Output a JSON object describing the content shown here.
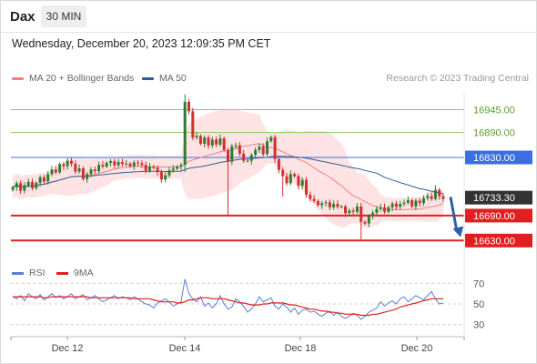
{
  "header": {
    "symbol": "Dax",
    "timeframe": "30 MIN",
    "timestamp": "Wednesday, December 20, 2023 12:09:35 PM CET"
  },
  "legend": {
    "ma20_label": "MA 20 + Bollinger Bands",
    "ma50_label": "MA 50",
    "ma20_color": "#f08080",
    "ma50_color": "#2f5f99",
    "research": "Research © 2023 Trading Central"
  },
  "rsi_legend": {
    "rsi_label": "RSI",
    "ma_label": "9MA",
    "rsi_color": "#5b7fd6",
    "ma_color": "#e02020"
  },
  "colors": {
    "up": "#2e7d32",
    "down": "#d32f2f",
    "band_fill": "#fde3e3",
    "support": "#e02020",
    "resistance": "#8fc866",
    "pivot": "#3b6fe0",
    "current": "#333333",
    "arrow": "#2b5fa8"
  },
  "chart_data": [
    {
      "type": "candlestick",
      "title": "",
      "ylim": [
        16600,
        16990
      ],
      "x_ticks": [
        "Dec 12",
        "Dec 14",
        "Dec 18",
        "Dec 20"
      ],
      "levels": [
        {
          "label": "16945.00",
          "value": 16945,
          "kind": "resistance"
        },
        {
          "label": "16890.00",
          "value": 16890,
          "kind": "resistance"
        },
        {
          "label": "16830.00",
          "value": 16830,
          "kind": "pivot"
        },
        {
          "label": "16733.30",
          "value": 16733.3,
          "kind": "current"
        },
        {
          "label": "16690.00",
          "value": 16690,
          "kind": "support"
        },
        {
          "label": "16630.00",
          "value": 16630,
          "kind": "support"
        }
      ],
      "close": [
        16758,
        16768,
        16750,
        16763,
        16771,
        16756,
        16769,
        16782,
        16772,
        16790,
        16801,
        16794,
        16814,
        16809,
        16822,
        16815,
        16796,
        16804,
        16778,
        16790,
        16801,
        16797,
        16812,
        16808,
        16817,
        16821,
        16811,
        16819,
        16814,
        16815,
        16809,
        16818,
        16816,
        16812,
        16798,
        16808,
        16805,
        16795,
        16777,
        16787,
        16799,
        16803,
        16808,
        16812,
        16964,
        16941,
        16878,
        16882,
        16863,
        16878,
        16859,
        16873,
        16861,
        16876,
        16848,
        16820,
        16857,
        16859,
        16839,
        16822,
        16822,
        16836,
        16848,
        16856,
        16838,
        16869,
        16879,
        16826,
        16800,
        16785,
        16768,
        16790,
        16785,
        16762,
        16776,
        16740,
        16730,
        16725,
        16715,
        16720,
        16722,
        16710,
        16718,
        16711,
        16712,
        16696,
        16702,
        16699,
        16712,
        16675,
        16671,
        16689,
        16697,
        16706,
        16710,
        16699,
        16710,
        16719,
        16711,
        16718,
        16721,
        16727,
        16712,
        16726,
        16720,
        16732,
        16737,
        16730,
        16752,
        16737,
        16730
      ],
      "series": [
        {
          "name": "MA 20 + Bollinger Bands",
          "color": "#f08080"
        },
        {
          "name": "MA 50",
          "color": "#2f5f99"
        }
      ],
      "arrow": {
        "from_value": 16735,
        "to_value": 16638
      }
    },
    {
      "type": "line",
      "title": "",
      "ylim": [
        20,
        80
      ],
      "y_ticks": [
        70,
        50,
        30
      ],
      "series": [
        {
          "name": "RSI",
          "color": "#5b7fd6",
          "values": [
            57,
            55,
            58,
            53,
            60,
            57,
            55,
            59,
            54,
            57,
            60,
            56,
            58,
            55,
            57,
            60,
            55,
            57,
            59,
            54,
            56,
            58,
            55,
            52,
            54,
            56,
            58,
            55,
            57,
            56,
            54,
            57,
            55,
            52,
            50,
            49,
            46,
            51,
            53,
            55,
            52,
            48,
            50,
            52,
            74,
            60,
            55,
            52,
            57,
            48,
            51,
            46,
            50,
            58,
            50,
            45,
            47,
            55,
            52,
            48,
            42,
            45,
            50,
            57,
            52,
            54,
            56,
            48,
            45,
            50,
            47,
            42,
            46,
            40,
            44,
            45,
            42,
            43,
            40,
            38,
            41,
            43,
            39,
            42,
            38,
            36,
            38,
            41,
            39,
            35,
            38,
            42,
            44,
            46,
            52,
            48,
            51,
            53,
            50,
            55,
            57,
            52,
            55,
            58,
            56,
            54,
            58,
            62,
            55,
            50,
            51
          ]
        },
        {
          "name": "9MA",
          "color": "#e02020",
          "values": [
            57,
            57,
            57,
            57,
            57,
            57,
            57,
            57,
            56,
            56,
            57,
            57,
            57,
            57,
            57,
            57,
            57,
            57,
            57,
            57,
            56,
            56,
            56,
            56,
            56,
            56,
            56,
            56,
            56,
            56,
            56,
            55,
            55,
            55,
            55,
            55,
            54,
            53,
            52,
            52,
            52,
            52,
            51,
            51,
            52,
            54,
            54,
            55,
            56,
            56,
            56,
            55,
            55,
            55,
            55,
            54,
            53,
            52,
            51,
            51,
            50,
            49,
            49,
            49,
            50,
            50,
            51,
            51,
            51,
            51,
            50,
            49,
            49,
            48,
            47,
            46,
            45,
            45,
            44,
            43,
            43,
            42,
            42,
            41,
            41,
            40,
            40,
            40,
            40,
            39,
            39,
            39,
            40,
            40,
            41,
            42,
            43,
            44,
            45,
            47,
            48,
            49,
            50,
            51,
            52,
            53,
            54,
            55,
            55,
            55,
            55
          ]
        }
      ]
    }
  ]
}
